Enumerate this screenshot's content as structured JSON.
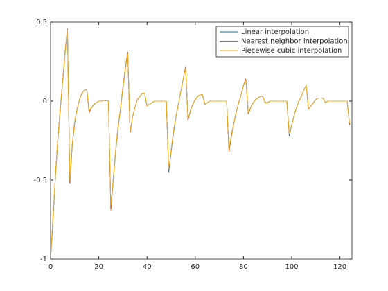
{
  "chart_data": {
    "type": "line",
    "x": [
      0,
      1,
      2,
      3,
      4,
      5,
      6,
      7,
      8,
      9,
      10,
      11,
      12,
      13,
      14,
      15,
      16,
      17,
      18,
      19,
      20,
      21,
      22,
      23,
      24,
      25,
      26,
      27,
      28,
      29,
      30,
      31,
      32,
      33,
      34,
      35,
      36,
      37,
      38,
      39,
      40,
      41,
      42,
      43,
      44,
      45,
      46,
      47,
      48,
      49,
      50,
      51,
      52,
      53,
      54,
      55,
      56,
      57,
      58,
      59,
      60,
      61,
      62,
      63,
      64,
      65,
      66,
      67,
      68,
      69,
      70,
      71,
      72,
      73,
      74,
      75,
      76,
      77,
      78,
      79,
      80,
      81,
      82,
      83,
      84,
      85,
      86,
      87,
      88,
      89,
      90,
      91,
      92,
      93,
      94,
      95,
      96,
      97,
      98,
      99,
      100,
      101,
      102,
      103,
      104,
      105,
      106,
      107,
      108,
      109,
      110,
      111,
      112,
      113,
      114,
      115,
      116,
      117,
      118,
      119,
      120,
      121,
      122,
      123,
      124
    ],
    "series": [
      {
        "name": "Linear interpolation",
        "color": "#0072bd",
        "values": [
          -1,
          -0.75,
          -0.48,
          -0.25,
          -0.06,
          0.12,
          0.3,
          0.45,
          -0.52,
          -0.28,
          -0.14,
          -0.05,
          0.01,
          0.05,
          0.07,
          0.075,
          -0.07,
          -0.04,
          -0.02,
          -0.01,
          0,
          0,
          0.005,
          0.003,
          0,
          -0.68,
          -0.5,
          -0.32,
          -0.17,
          -0.05,
          0.08,
          0.2,
          0.31,
          -0.2,
          -0.1,
          -0.04,
          0.01,
          0.03,
          0.05,
          0.05,
          -0.03,
          -0.02,
          -0.01,
          0,
          0,
          0,
          0,
          0,
          0,
          -0.45,
          -0.32,
          -0.2,
          -0.1,
          -0.02,
          0.06,
          0.14,
          0.22,
          -0.12,
          -0.06,
          -0.02,
          0.01,
          0.03,
          0.04,
          0.04,
          -0.02,
          -0.01,
          0,
          0,
          0,
          0,
          0,
          0,
          0,
          0,
          -0.31,
          -0.22,
          -0.14,
          -0.07,
          -0.01,
          0.04,
          0.1,
          0.14,
          -0.08,
          -0.04,
          -0.01,
          0.01,
          0.02,
          0.03,
          0.03,
          -0.01,
          -0.01,
          0,
          0,
          0,
          0,
          0,
          0,
          0,
          0,
          -0.22,
          -0.15,
          -0.09,
          -0.04,
          0,
          0.03,
          0.07,
          0.1,
          -0.05,
          -0.03,
          -0.01,
          0.01,
          0.02,
          0.02,
          0.02,
          -0.01,
          0,
          0,
          0,
          0,
          0,
          0,
          0,
          0,
          0,
          -0.15
        ]
      },
      {
        "name": "Nearest neighbor interpolation",
        "color": "#d95319",
        "values": [
          -1,
          -0.74,
          -0.47,
          -0.24,
          -0.05,
          0.13,
          0.31,
          0.46,
          -0.52,
          -0.27,
          -0.13,
          -0.05,
          0.01,
          0.05,
          0.07,
          0.075,
          -0.07,
          -0.04,
          -0.02,
          -0.01,
          0,
          0,
          0.005,
          0.003,
          0,
          -0.69,
          -0.49,
          -0.31,
          -0.16,
          -0.05,
          0.09,
          0.21,
          0.31,
          -0.2,
          -0.1,
          -0.04,
          0.01,
          0.03,
          0.05,
          0.05,
          -0.03,
          -0.02,
          -0.01,
          0,
          0,
          0,
          0,
          0,
          0,
          -0.44,
          -0.31,
          -0.19,
          -0.1,
          -0.02,
          0.06,
          0.14,
          0.22,
          -0.12,
          -0.06,
          -0.02,
          0.01,
          0.03,
          0.04,
          0.04,
          -0.02,
          -0.01,
          0,
          0,
          0,
          0,
          0,
          0,
          0,
          0,
          -0.32,
          -0.22,
          -0.14,
          -0.07,
          -0.01,
          0.04,
          0.1,
          0.14,
          -0.08,
          -0.04,
          -0.01,
          0.01,
          0.02,
          0.03,
          0.03,
          -0.01,
          -0.01,
          0,
          0,
          0,
          0,
          0,
          0,
          0,
          0,
          -0.21,
          -0.15,
          -0.09,
          -0.04,
          0,
          0.03,
          0.07,
          0.1,
          -0.05,
          -0.03,
          -0.01,
          0.01,
          0.02,
          0.02,
          0.02,
          -0.01,
          0,
          0,
          0,
          0,
          0,
          0,
          0,
          0,
          0,
          -0.15
        ]
      },
      {
        "name": "Piecewise cubic interpolation",
        "color": "#edb120",
        "values": [
          -0.98,
          -0.73,
          -0.47,
          -0.24,
          -0.05,
          0.12,
          0.3,
          0.45,
          -0.5,
          -0.27,
          -0.13,
          -0.05,
          0.01,
          0.05,
          0.07,
          0.075,
          -0.06,
          -0.04,
          -0.02,
          -0.01,
          0,
          0,
          0.005,
          0.003,
          0,
          -0.66,
          -0.49,
          -0.31,
          -0.16,
          -0.05,
          0.08,
          0.2,
          0.3,
          -0.19,
          -0.1,
          -0.04,
          0.01,
          0.03,
          0.05,
          0.05,
          -0.03,
          -0.02,
          -0.01,
          0,
          0,
          0,
          0,
          0,
          0,
          -0.43,
          -0.31,
          -0.19,
          -0.1,
          -0.02,
          0.06,
          0.14,
          0.21,
          -0.11,
          -0.06,
          -0.02,
          0.01,
          0.03,
          0.04,
          0.04,
          -0.02,
          -0.01,
          0,
          0,
          0,
          0,
          0,
          0,
          0,
          0,
          -0.3,
          -0.21,
          -0.14,
          -0.07,
          -0.01,
          0.04,
          0.1,
          0.13,
          -0.07,
          -0.04,
          -0.01,
          0.01,
          0.02,
          0.03,
          0.03,
          -0.01,
          -0.01,
          0,
          0,
          0,
          0,
          0,
          0,
          0,
          0,
          -0.21,
          -0.15,
          -0.09,
          -0.04,
          0,
          0.03,
          0.07,
          0.1,
          -0.05,
          -0.03,
          -0.01,
          0.01,
          0.02,
          0.02,
          0.02,
          -0.01,
          0,
          0,
          0,
          0,
          0,
          0,
          0,
          0,
          0,
          -0.14
        ]
      }
    ],
    "xlim": [
      0,
      125
    ],
    "ylim": [
      -1,
      0.5
    ],
    "xticks": [
      0,
      20,
      40,
      60,
      80,
      100,
      120
    ],
    "yticks": [
      -1,
      -0.5,
      0,
      0.5
    ],
    "legend": "upper right",
    "grid": false
  }
}
